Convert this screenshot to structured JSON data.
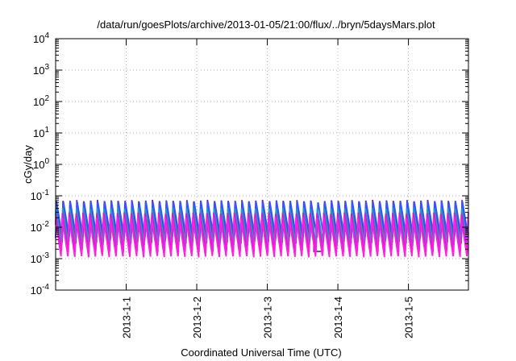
{
  "chart_data": {
    "type": "line",
    "title": "/data/run/goesPlots/archive/2013-01-05/21:00/flux/../bryn/5daysMars.plot",
    "xlabel": "Coordinated Universal Time (UTC)",
    "ylabel": "cGy/day",
    "y_scale": "log",
    "ylim_exp": [
      -4,
      4
    ],
    "y_tick_base": "10",
    "y_tick_exponents": [
      "-4",
      "-3",
      "-2",
      "-1",
      "0",
      "1",
      "2",
      "3",
      "4"
    ],
    "xlim_days": [
      0.0,
      5.85
    ],
    "x_tick_labels": [
      "2013-1-1",
      "2013-1-2",
      "2013-1-3",
      "2013-1-4",
      "2013-1-5"
    ],
    "x_tick_days": [
      1,
      2,
      3,
      4,
      5
    ],
    "grid": true,
    "sawtooth": {
      "period_days": 0.0975,
      "start_day": 0.0,
      "end_day": 5.85,
      "dip": {
        "day": 3.72,
        "low_value": 0.0017
      }
    },
    "series": [
      {
        "color": "#6a2aa0",
        "peak": 0.075,
        "trough": 0.0032,
        "phase": 0.05
      },
      {
        "color": "#2f58ff",
        "peak": 0.068,
        "trough": 0.0045,
        "phase": 0.0
      },
      {
        "color": "#1c9fbf",
        "peak": 0.042,
        "trough": 0.0026,
        "phase": 0.1
      },
      {
        "color": "#c81fd4",
        "peak": 0.03,
        "trough": 0.0016,
        "phase": 0.15
      },
      {
        "color": "#ff1fe0",
        "peak": 0.022,
        "trough": 0.0011,
        "phase": 0.2
      }
    ]
  }
}
